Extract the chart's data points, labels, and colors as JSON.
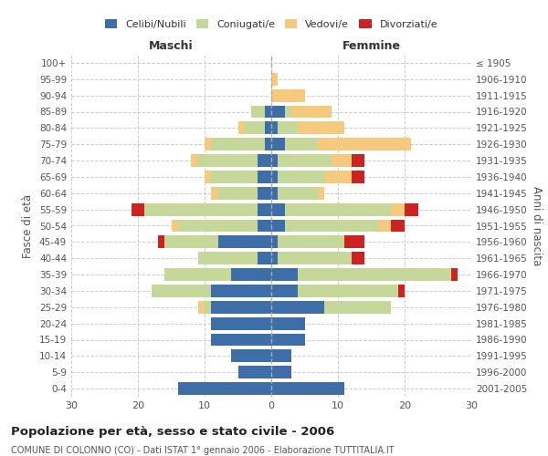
{
  "age_groups": [
    "0-4",
    "5-9",
    "10-14",
    "15-19",
    "20-24",
    "25-29",
    "30-34",
    "35-39",
    "40-44",
    "45-49",
    "50-54",
    "55-59",
    "60-64",
    "65-69",
    "70-74",
    "75-79",
    "80-84",
    "85-89",
    "90-94",
    "95-99",
    "100+"
  ],
  "birth_years": [
    "2001-2005",
    "1996-2000",
    "1991-1995",
    "1986-1990",
    "1981-1985",
    "1976-1980",
    "1971-1975",
    "1966-1970",
    "1961-1965",
    "1956-1960",
    "1951-1955",
    "1946-1950",
    "1941-1945",
    "1936-1940",
    "1931-1935",
    "1926-1930",
    "1921-1925",
    "1916-1920",
    "1911-1915",
    "1906-1910",
    "≤ 1905"
  ],
  "male": {
    "celibi": [
      14,
      5,
      6,
      9,
      9,
      9,
      9,
      6,
      2,
      8,
      2,
      2,
      2,
      2,
      2,
      1,
      1,
      1,
      0,
      0,
      0
    ],
    "coniugati": [
      0,
      0,
      0,
      0,
      0,
      1,
      9,
      10,
      9,
      8,
      12,
      17,
      6,
      7,
      9,
      8,
      3,
      2,
      0,
      0,
      0
    ],
    "vedovi": [
      0,
      0,
      0,
      0,
      0,
      1,
      0,
      0,
      0,
      0,
      1,
      0,
      1,
      1,
      1,
      1,
      1,
      0,
      0,
      0,
      0
    ],
    "divorziati": [
      0,
      0,
      0,
      0,
      0,
      0,
      0,
      0,
      0,
      1,
      0,
      2,
      0,
      0,
      0,
      0,
      0,
      0,
      0,
      0,
      0
    ]
  },
  "female": {
    "nubili": [
      11,
      3,
      3,
      5,
      5,
      8,
      4,
      4,
      1,
      1,
      2,
      2,
      1,
      1,
      1,
      2,
      1,
      2,
      0,
      0,
      0
    ],
    "coniugate": [
      0,
      0,
      0,
      0,
      0,
      10,
      15,
      23,
      11,
      10,
      14,
      16,
      6,
      7,
      8,
      5,
      3,
      1,
      0,
      0,
      0
    ],
    "vedove": [
      0,
      0,
      0,
      0,
      0,
      0,
      0,
      0,
      0,
      0,
      2,
      2,
      1,
      4,
      3,
      14,
      7,
      6,
      5,
      1,
      0
    ],
    "divorziate": [
      0,
      0,
      0,
      0,
      0,
      0,
      1,
      1,
      2,
      3,
      2,
      2,
      0,
      2,
      2,
      0,
      0,
      0,
      0,
      0,
      0
    ]
  },
  "colors": {
    "celibi": "#3d6ea8",
    "coniugati": "#c5d89a",
    "vedovi": "#f5c97e",
    "divorziati": "#cc2222"
  },
  "xlim": 30,
  "title": "Popolazione per età, sesso e stato civile - 2006",
  "subtitle": "COMUNE DI COLONNO (CO) - Dati ISTAT 1° gennaio 2006 - Elaborazione TUTTITALIA.IT",
  "ylabel_left": "Fasce di età",
  "ylabel_right": "Anni di nascita",
  "xlabel_left": "Maschi",
  "xlabel_right": "Femmine",
  "legend_labels": [
    "Celibi/Nubili",
    "Coniugati/e",
    "Vedovi/e",
    "Divorziati/e"
  ]
}
